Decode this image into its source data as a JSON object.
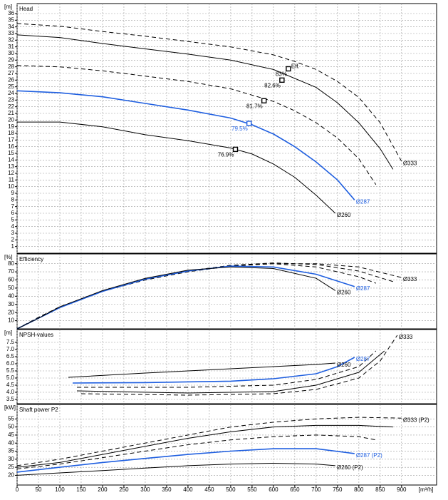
{
  "chart_data": [
    {
      "type": "line",
      "title": "Head",
      "y_unit": "[m]",
      "xlim": [
        0,
        982
      ],
      "ylim": [
        0,
        37.5
      ],
      "yticks": [
        1,
        2,
        3,
        4,
        5,
        6,
        7,
        8,
        9,
        10,
        11,
        12,
        13,
        14,
        15,
        16,
        17,
        18,
        19,
        20,
        21,
        22,
        23,
        24,
        25,
        26,
        27,
        28,
        29,
        30,
        31,
        32,
        33,
        34,
        35,
        36
      ],
      "series": [
        {
          "name": "Ø333",
          "color": "#000000",
          "dashed": true,
          "x": [
            0,
            100,
            200,
            300,
            400,
            500,
            600,
            650,
            700,
            750,
            800,
            850,
            900
          ],
          "values": [
            34.5,
            34.1,
            33.3,
            32.6,
            31.8,
            31.0,
            29.8,
            28.8,
            27.6,
            25.8,
            23.4,
            19.6,
            13.8
          ]
        },
        {
          "color": "#000000",
          "dashed": false,
          "x": [
            0,
            100,
            200,
            300,
            400,
            500,
            600,
            700,
            750,
            800,
            850,
            880
          ],
          "values": [
            32.8,
            32.4,
            31.5,
            30.7,
            29.9,
            29.0,
            27.6,
            24.9,
            22.6,
            19.6,
            15.7,
            12.6
          ]
        },
        {
          "color": "#000000",
          "dashed": true,
          "x": [
            0,
            100,
            200,
            300,
            400,
            500,
            600,
            650,
            700,
            750,
            800,
            840
          ],
          "values": [
            28.2,
            28.0,
            27.4,
            26.6,
            25.8,
            24.7,
            22.8,
            21.4,
            19.6,
            17.3,
            14.2,
            10.3
          ]
        },
        {
          "name": "Ø287",
          "color": "#1f5fe0",
          "dashed": false,
          "x": [
            0,
            100,
            200,
            300,
            400,
            500,
            550,
            600,
            650,
            700,
            750,
            790
          ],
          "values": [
            24.4,
            24.1,
            23.5,
            22.5,
            21.5,
            20.3,
            19.3,
            17.9,
            16.0,
            13.7,
            11.0,
            8.0
          ]
        },
        {
          "name": "Ø260",
          "color": "#000000",
          "dashed": false,
          "x": [
            0,
            100,
            200,
            300,
            400,
            500,
            550,
            600,
            650,
            700,
            745
          ],
          "values": [
            19.7,
            19.7,
            19.0,
            17.8,
            16.9,
            15.8,
            14.9,
            13.4,
            11.4,
            8.7,
            6.0
          ]
        }
      ],
      "points": [
        {
          "x": 635,
          "y": 27.7,
          "label": "83%",
          "tag": "Eff.",
          "color": "#000000"
        },
        {
          "x": 620,
          "y": 26.0,
          "label": "82.6%",
          "color": "#000000"
        },
        {
          "x": 578,
          "y": 22.9,
          "label": "81.7%",
          "color": "#000000"
        },
        {
          "x": 543,
          "y": 19.5,
          "label": "79.5%",
          "color": "#1f5fe0"
        },
        {
          "x": 511,
          "y": 15.6,
          "label": "76.9%",
          "color": "#000000"
        }
      ]
    },
    {
      "type": "line",
      "title": "Efficiency",
      "y_unit": "[%]",
      "xlim": [
        0,
        982
      ],
      "ylim": [
        0,
        92
      ],
      "yticks": [
        10,
        20,
        30,
        40,
        50,
        60,
        70,
        80
      ],
      "series": [
        {
          "name": "Ø333",
          "color": "#000000",
          "dashed": true,
          "x": [
            0,
            50,
            100,
            200,
            300,
            400,
            500,
            600,
            700,
            800,
            900
          ],
          "values": [
            0,
            14,
            27,
            46,
            60,
            70,
            77,
            80,
            80,
            76,
            63
          ]
        },
        {
          "color": "#000000",
          "dashed": true,
          "x": [
            0,
            50,
            100,
            200,
            300,
            400,
            500,
            600,
            700,
            800,
            880
          ],
          "values": [
            0,
            14,
            27,
            46,
            61,
            71,
            78,
            81,
            79,
            71,
            58
          ]
        },
        {
          "color": "#000000",
          "dashed": true,
          "x": [
            0,
            50,
            100,
            200,
            300,
            400,
            500,
            600,
            700,
            800,
            840
          ],
          "values": [
            0,
            14,
            27,
            46,
            61,
            71,
            78,
            80,
            76,
            64,
            56
          ]
        },
        {
          "name": "Ø287",
          "color": "#1f5fe0",
          "dashed": false,
          "x": [
            0,
            50,
            100,
            200,
            300,
            400,
            500,
            600,
            700,
            790
          ],
          "values": [
            0,
            13,
            26,
            46,
            61,
            71,
            77,
            76,
            67,
            52
          ]
        },
        {
          "name": "Ø260",
          "color": "#000000",
          "dashed": false,
          "x": [
            0,
            50,
            100,
            200,
            300,
            400,
            500,
            600,
            700,
            745
          ],
          "values": [
            0,
            13,
            27,
            47,
            62,
            72,
            76,
            74,
            62,
            47
          ]
        }
      ]
    },
    {
      "type": "line",
      "title": "NPSH-values",
      "y_unit": "[m]",
      "xlim": [
        0,
        982
      ],
      "ylim": [
        3.2,
        8.4
      ],
      "yticks": [
        3.5,
        {
          "value": 4,
          "label": "4.0"
        },
        4.5,
        {
          "value": 5,
          "label": "5.0"
        },
        5.5,
        {
          "value": 6,
          "label": "6.0"
        },
        6.5,
        {
          "value": 7,
          "label": "7.0"
        },
        7.5
      ],
      "series": [
        {
          "name": "Ø333",
          "color": "#000000",
          "dashed": true,
          "x": [
            150,
            400,
            600,
            700,
            800,
            850,
            890
          ],
          "values": [
            3.9,
            3.8,
            3.9,
            4.2,
            5.0,
            6.2,
            8.0
          ]
        },
        {
          "color": "#000000",
          "dashed": false,
          "x": [
            140,
            400,
            600,
            700,
            800,
            860
          ],
          "values": [
            4.1,
            3.95,
            4.05,
            4.5,
            5.4,
            6.9
          ]
        },
        {
          "color": "#000000",
          "dashed": true,
          "x": [
            140,
            400,
            600,
            700,
            800,
            840
          ],
          "values": [
            4.35,
            4.35,
            4.5,
            4.9,
            5.8,
            6.9
          ]
        },
        {
          "name": "Ø287",
          "color": "#1f5fe0",
          "dashed": false,
          "x": [
            130,
            300,
            500,
            600,
            700,
            750,
            790
          ],
          "values": [
            4.65,
            4.68,
            4.78,
            4.95,
            5.3,
            5.8,
            6.45
          ]
        },
        {
          "name": "Ø260",
          "color": "#000000",
          "dashed": false,
          "x": [
            120,
            300,
            500,
            700,
            745
          ],
          "values": [
            5.05,
            5.35,
            5.65,
            5.95,
            6.05
          ]
        }
      ]
    },
    {
      "type": "line",
      "title": "Shaft power P2",
      "y_unit": "[kW]",
      "x_unit": "[m³/h]",
      "xlim": [
        0,
        982
      ],
      "ylim": [
        14,
        64
      ],
      "yticks": [
        20,
        25,
        30,
        35,
        40,
        45,
        50,
        55
      ],
      "xticks": [
        0,
        50,
        100,
        150,
        200,
        250,
        300,
        350,
        400,
        450,
        500,
        550,
        600,
        650,
        700,
        750,
        800,
        850,
        900
      ],
      "series": [
        {
          "name": "Ø333 (P2)",
          "color": "#000000",
          "dashed": true,
          "x": [
            0,
            100,
            200,
            300,
            400,
            500,
            600,
            700,
            800,
            900
          ],
          "values": [
            26,
            30,
            35,
            40,
            45,
            50,
            53,
            55,
            56,
            55.5
          ]
        },
        {
          "color": "#000000",
          "dashed": false,
          "x": [
            0,
            100,
            200,
            300,
            400,
            500,
            600,
            700,
            800,
            880
          ],
          "values": [
            25,
            28,
            33,
            38,
            43,
            47,
            50,
            51,
            51,
            50
          ]
        },
        {
          "color": "#000000",
          "dashed": true,
          "x": [
            0,
            100,
            200,
            300,
            400,
            500,
            600,
            700,
            800,
            840
          ],
          "values": [
            24,
            27,
            31,
            35,
            39,
            42,
            44,
            45,
            44,
            42
          ]
        },
        {
          "name": "Ø287 (P2)",
          "color": "#1f5fe0",
          "dashed": false,
          "x": [
            0,
            100,
            200,
            300,
            400,
            500,
            600,
            700,
            790
          ],
          "values": [
            22,
            25,
            28,
            30.5,
            33,
            35,
            36.5,
            36.5,
            33.5
          ]
        },
        {
          "name": "Ø260 (P2)",
          "color": "#000000",
          "dashed": false,
          "x": [
            0,
            100,
            200,
            300,
            400,
            500,
            600,
            700,
            745
          ],
          "values": [
            20,
            21.5,
            23,
            24.5,
            26,
            27,
            27.5,
            27,
            26
          ]
        }
      ]
    }
  ]
}
